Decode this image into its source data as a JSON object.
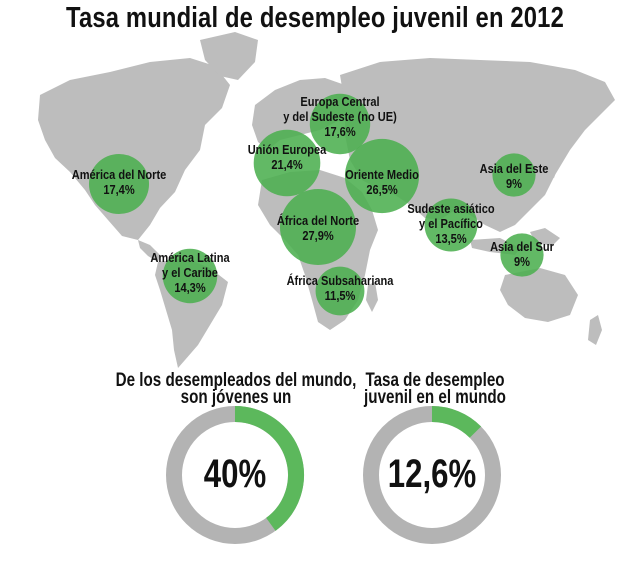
{
  "title": "Tasa mundial de desempleo juvenil en 2012",
  "colors": {
    "bubble": "#4caf50",
    "land": "#bdbdbd",
    "ring_bg": "#b3b3b3",
    "ring_fill": "#5cb85c"
  },
  "chart_data": [
    {
      "type": "bubble-map",
      "title": "Tasa mundial de desempleo juvenil en 2012",
      "regions": [
        {
          "name_line1": "América del Norte",
          "name_line2": "",
          "value": "17,4%"
        },
        {
          "name_line1": "América Latina",
          "name_line2": "y el Caribe",
          "value": "14,3%"
        },
        {
          "name_line1": "Unión Europea",
          "name_line2": "",
          "value": "21,4%"
        },
        {
          "name_line1": "Europa Central",
          "name_line2": "y del Sudeste (no UE)",
          "value": "17,6%"
        },
        {
          "name_line1": "Oriente Medio",
          "name_line2": "",
          "value": "26,5%"
        },
        {
          "name_line1": "África del Norte",
          "name_line2": "",
          "value": "27,9%"
        },
        {
          "name_line1": "África Subsahariana",
          "name_line2": "",
          "value": "11,5%"
        },
        {
          "name_line1": "Sudeste asiático",
          "name_line2": "y el Pacífico",
          "value": "13,5%"
        },
        {
          "name_line1": "Asia del Este",
          "name_line2": "",
          "value": "9%"
        },
        {
          "name_line1": "Asia del Sur",
          "name_line2": "",
          "value": "9%"
        }
      ]
    },
    {
      "type": "pie",
      "caption_line1": "De los desempleados del mundo,",
      "caption_line2": "son jóvenes un",
      "value": 40,
      "label": "40%"
    },
    {
      "type": "pie",
      "caption_line1": "Tasa de desempleo",
      "caption_line2": "juvenil en el mundo",
      "value": 12.6,
      "label": "12,6%"
    }
  ]
}
